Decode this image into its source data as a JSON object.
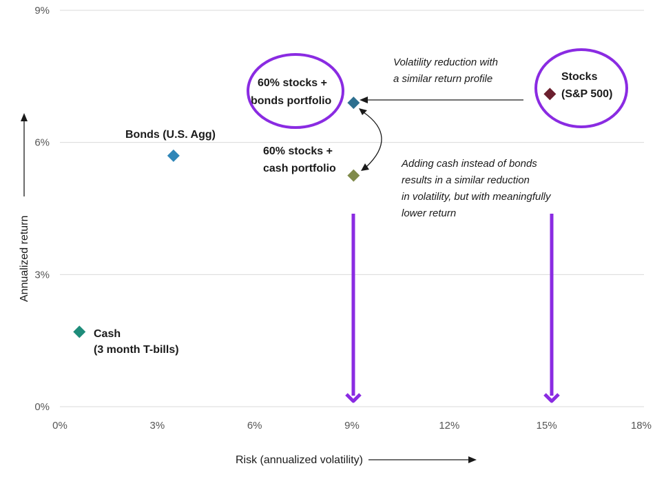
{
  "chart_data": {
    "type": "scatter",
    "xlabel": "Risk (annualized volatility)",
    "ylabel": "Annualized return",
    "xlim": [
      0,
      18
    ],
    "ylim": [
      0,
      9
    ],
    "x_ticks": [
      "0%",
      "3%",
      "6%",
      "9%",
      "12%",
      "15%",
      "18%"
    ],
    "y_ticks": [
      "0%",
      "3%",
      "6%",
      "9%"
    ],
    "grid": "horizontal",
    "points": [
      {
        "label_lines": [
          "Cash",
          "(3 month T-bills)"
        ],
        "x": 0.6,
        "y": 1.7,
        "color": "#1e8c7a"
      },
      {
        "label_lines": [
          "Bonds (U.S. Agg)"
        ],
        "x": 3.5,
        "y": 5.7,
        "color": "#2f86b8"
      },
      {
        "label_lines": [
          "60% stocks +",
          "bonds portfolio"
        ],
        "x": 9.05,
        "y": 6.9,
        "color": "#2e6f8f"
      },
      {
        "label_lines": [
          "60% stocks +",
          "cash portfolio"
        ],
        "x": 9.05,
        "y": 5.25,
        "color": "#7f8a4a"
      },
      {
        "label_lines": [
          "Stocks",
          "(S&P 500)"
        ],
        "x": 15.1,
        "y": 7.1,
        "color": "#6b1f2e"
      }
    ],
    "annotations": [
      {
        "lines": [
          "Volatility reduction with",
          "a similar return profile"
        ]
      },
      {
        "lines": [
          "Adding cash instead of bonds",
          "results in a similar reduction",
          "in volatility, but with meaningfully",
          "lower return"
        ]
      }
    ]
  },
  "colors": {
    "highlight": "#8a2be2",
    "arrow": "#1a1a1a",
    "grid": "#d9d9d9"
  }
}
